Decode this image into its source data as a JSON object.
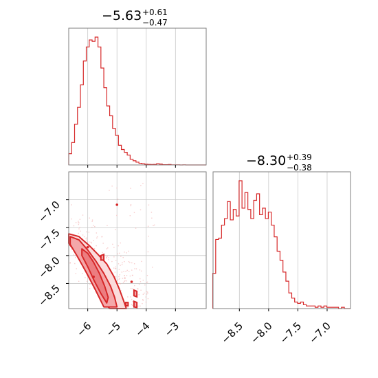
{
  "colors": {
    "accent": "#d62728",
    "grid": "#c8c8c8",
    "frame": "#7f7f7f"
  },
  "chart_data": [
    {
      "type": "histogram",
      "panel": "marginal-param1",
      "title": {
        "median": "−5.63",
        "plus": "+0.61",
        "minus": "−0.47"
      },
      "xlim": [
        -6.65,
        -1.95
      ],
      "x": [
        -6.6,
        -6.5,
        -6.4,
        -6.3,
        -6.2,
        -6.1,
        -6.0,
        -5.9,
        -5.8,
        -5.7,
        -5.6,
        -5.5,
        -5.4,
        -5.3,
        -5.2,
        -5.1,
        -5.0,
        -4.9,
        -4.8,
        -4.7,
        -4.6,
        -4.5,
        -4.4,
        -4.3,
        -4.2,
        -4.1,
        -4.0,
        -3.9,
        -3.8,
        -3.7,
        -3.6,
        -3.5,
        -3.4,
        -3.3,
        -3.2,
        -3.1,
        -3.0,
        -2.9,
        -2.8,
        -2.7,
        -2.6,
        -2.5,
        -2.4,
        -2.3,
        -2.2,
        -2.1,
        -2.0
      ],
      "y": [
        0.08,
        0.16,
        0.29,
        0.41,
        0.57,
        0.74,
        0.84,
        0.89,
        0.88,
        0.91,
        0.84,
        0.69,
        0.55,
        0.42,
        0.35,
        0.26,
        0.21,
        0.14,
        0.11,
        0.09,
        0.07,
        0.04,
        0.03,
        0.02,
        0.012,
        0.008,
        0.005,
        0.004,
        0.003,
        0.004,
        0.008,
        0.006,
        0.002,
        0.002,
        0.003,
        0.001,
        0.001,
        0.001,
        0,
        0.001,
        0,
        0,
        0,
        0,
        0,
        0,
        0
      ],
      "grid_x": [
        -6,
        -5,
        -4,
        -3
      ]
    },
    {
      "type": "histogram",
      "panel": "marginal-param2",
      "title": {
        "median": "−8.30",
        "plus": "+0.39",
        "minus": "−0.38"
      },
      "xlim": [
        -8.95,
        -6.6
      ],
      "x": [
        -8.93,
        -8.88,
        -8.83,
        -8.78,
        -8.73,
        -8.68,
        -8.63,
        -8.58,
        -8.53,
        -8.48,
        -8.43,
        -8.38,
        -8.33,
        -8.28,
        -8.23,
        -8.18,
        -8.13,
        -8.08,
        -8.03,
        -7.98,
        -7.93,
        -7.88,
        -7.83,
        -7.78,
        -7.73,
        -7.68,
        -7.63,
        -7.58,
        -7.53,
        -7.48,
        -7.43,
        -7.38,
        -7.33,
        -7.28,
        -7.23,
        -7.18,
        -7.13,
        -7.08,
        -7.03,
        -6.98,
        -6.93,
        -6.88,
        -6.83,
        -6.78,
        -6.73,
        -6.68,
        -6.63
      ],
      "y": [
        0.27,
        0.53,
        0.54,
        0.64,
        0.69,
        0.82,
        0.68,
        0.76,
        0.71,
        0.98,
        0.77,
        0.89,
        0.76,
        0.69,
        0.83,
        0.88,
        0.72,
        0.77,
        0.69,
        0.74,
        0.64,
        0.55,
        0.44,
        0.37,
        0.28,
        0.21,
        0.12,
        0.08,
        0.05,
        0.04,
        0.05,
        0.03,
        0.02,
        0.02,
        0.02,
        0.01,
        0.02,
        0.01,
        0.02,
        0.01,
        0.01,
        0.01,
        0.01,
        0.0,
        0.01,
        0.0,
        0.0
      ],
      "grid_x": [
        -8.5,
        -8.0,
        -7.5,
        -7.0
      ]
    },
    {
      "type": "scatter",
      "panel": "joint-param1-param2",
      "xlim": [
        -6.65,
        -1.95
      ],
      "ylim": [
        -8.95,
        -6.5
      ],
      "grid_x": [
        -6,
        -5,
        -4,
        -3
      ],
      "grid_y": [
        -8.5,
        -8.0,
        -7.5,
        -7.0
      ],
      "contours": [
        {
          "level": "outer",
          "points": [
            [
              -6.65,
              -7.61
            ],
            [
              -6.3,
              -7.66
            ],
            [
              -5.95,
              -7.82
            ],
            [
              -5.65,
              -7.98
            ],
            [
              -5.35,
              -8.15
            ],
            [
              -5.1,
              -8.38
            ],
            [
              -4.92,
              -8.6
            ],
            [
              -4.78,
              -8.8
            ],
            [
              -4.68,
              -8.95
            ],
            [
              -5.25,
              -8.95
            ],
            [
              -5.6,
              -8.75
            ],
            [
              -5.9,
              -8.45
            ],
            [
              -6.2,
              -8.15
            ],
            [
              -6.45,
              -7.92
            ],
            [
              -6.65,
              -7.78
            ]
          ]
        },
        {
          "level": "middle",
          "points": [
            [
              -6.6,
              -7.66
            ],
            [
              -6.3,
              -7.72
            ],
            [
              -6.0,
              -7.9
            ],
            [
              -5.72,
              -8.1
            ],
            [
              -5.45,
              -8.32
            ],
            [
              -5.22,
              -8.55
            ],
            [
              -5.08,
              -8.75
            ],
            [
              -5.0,
              -8.92
            ],
            [
              -5.45,
              -8.92
            ],
            [
              -5.75,
              -8.6
            ],
            [
              -6.05,
              -8.3
            ],
            [
              -6.35,
              -8.02
            ],
            [
              -6.6,
              -7.8
            ]
          ]
        },
        {
          "level": "inner",
          "points": [
            [
              -6.2,
              -7.88
            ],
            [
              -6.0,
              -7.96
            ],
            [
              -5.8,
              -8.12
            ],
            [
              -5.6,
              -8.32
            ],
            [
              -5.42,
              -8.55
            ],
            [
              -5.3,
              -8.75
            ],
            [
              -5.35,
              -8.85
            ],
            [
              -5.55,
              -8.68
            ],
            [
              -5.78,
              -8.45
            ],
            [
              -6.0,
              -8.2
            ],
            [
              -6.2,
              -8.0
            ]
          ]
        }
      ],
      "islands": [
        [
          [
            -4.42,
            -8.62
          ],
          [
            -4.32,
            -8.64
          ],
          [
            -4.32,
            -8.74
          ],
          [
            -4.42,
            -8.72
          ]
        ],
        [
          [
            -4.42,
            -8.82
          ],
          [
            -4.32,
            -8.84
          ],
          [
            -4.32,
            -8.93
          ],
          [
            -4.42,
            -8.92
          ]
        ],
        [
          [
            -4.7,
            -8.84
          ],
          [
            -4.62,
            -8.84
          ],
          [
            -4.62,
            -8.9
          ],
          [
            -4.7,
            -8.9
          ]
        ],
        [
          [
            -5.55,
            -8.0
          ],
          [
            -5.45,
            -7.98
          ],
          [
            -5.45,
            -8.08
          ],
          [
            -5.55,
            -8.08
          ]
        ]
      ],
      "dots": [
        [
          -5.0,
          -7.09
        ],
        [
          -4.5,
          -8.47
        ],
        [
          -6.0,
          -7.85
        ],
        [
          -5.8,
          -8.38
        ]
      ]
    }
  ],
  "labels": {
    "x1_ticks": [
      "−6",
      "−5",
      "−4",
      "−3"
    ],
    "y_ticks": [
      "−7.0",
      "−7.5",
      "−8.0",
      "−8.5"
    ],
    "x2_ticks": [
      "−8.5",
      "−8.0",
      "−7.5",
      "−7.0"
    ]
  }
}
